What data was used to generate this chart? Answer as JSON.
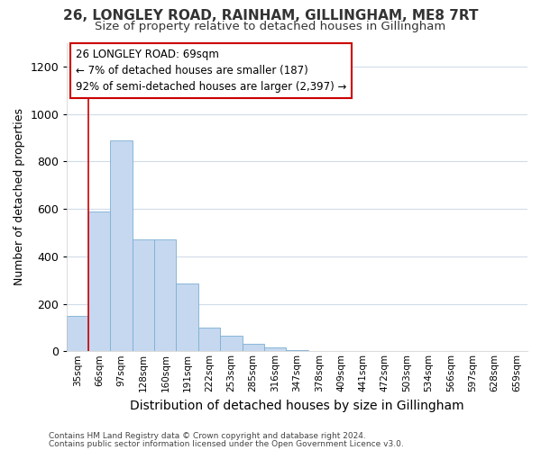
{
  "title_line1": "26, LONGLEY ROAD, RAINHAM, GILLINGHAM, ME8 7RT",
  "title_line2": "Size of property relative to detached houses in Gillingham",
  "xlabel": "Distribution of detached houses by size in Gillingham",
  "ylabel": "Number of detached properties",
  "categories": [
    "35sqm",
    "66sqm",
    "97sqm",
    "128sqm",
    "160sqm",
    "191sqm",
    "222sqm",
    "253sqm",
    "285sqm",
    "316sqm",
    "347sqm",
    "378sqm",
    "409sqm",
    "441sqm",
    "472sqm",
    "503sqm",
    "534sqm",
    "566sqm",
    "597sqm",
    "628sqm",
    "659sqm"
  ],
  "bar_heights": [
    150,
    590,
    890,
    470,
    470,
    285,
    100,
    65,
    30,
    15,
    5,
    0,
    0,
    0,
    0,
    0,
    0,
    0,
    0,
    0,
    0
  ],
  "bar_color": "#c5d8ef",
  "bar_edge_color": "#7bafd4",
  "annotation_line_color": "#cc0000",
  "annotation_box_text": "26 LONGLEY ROAD: 69sqm\n← 7% of detached houses are smaller (187)\n92% of semi-detached houses are larger (2,397) →",
  "ylim": [
    0,
    1300
  ],
  "yticks": [
    0,
    200,
    400,
    600,
    800,
    1000,
    1200
  ],
  "background_color": "#ffffff",
  "grid_color": "#d0dce8",
  "footer_line1": "Contains HM Land Registry data © Crown copyright and database right 2024.",
  "footer_line2": "Contains public sector information licensed under the Open Government Licence v3.0."
}
